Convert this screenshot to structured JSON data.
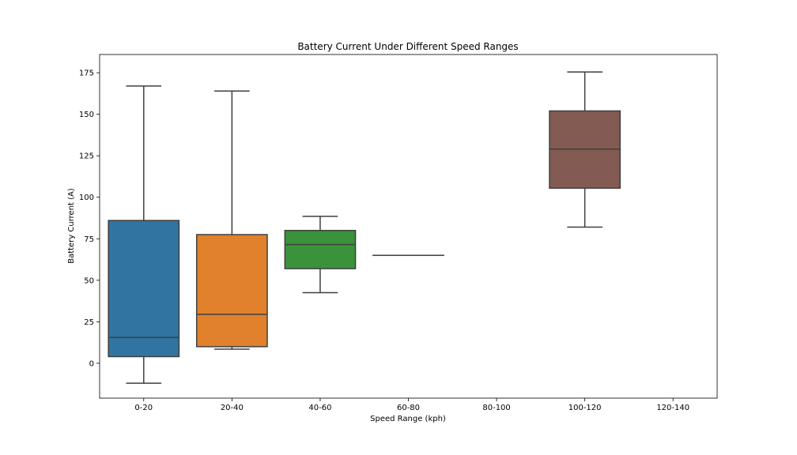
{
  "chart_data": {
    "type": "boxplot",
    "title": "Battery Current Under Different Speed Ranges",
    "xlabel": "Speed Range (kph)",
    "ylabel": "Battery Current (A)",
    "ylim": [
      -21,
      186
    ],
    "yticks": [
      0,
      25,
      50,
      75,
      100,
      125,
      150,
      175
    ],
    "grid": false,
    "categories": [
      "0-20",
      "20-40",
      "40-60",
      "60-80",
      "80-100",
      "100-120",
      "120-140"
    ],
    "boxes": [
      {
        "category": "0-20",
        "whisker_low": -12,
        "q1": 4,
        "median": 15.5,
        "q3": 86,
        "whisker_high": 167,
        "color": "#3274a1"
      },
      {
        "category": "20-40",
        "whisker_low": 8.5,
        "q1": 10,
        "median": 29.5,
        "q3": 77.5,
        "whisker_high": 164,
        "color": "#e1812c"
      },
      {
        "category": "40-60",
        "whisker_low": 42.5,
        "q1": 57,
        "median": 71.5,
        "q3": 80,
        "whisker_high": 88.5,
        "color": "#3a923a"
      },
      {
        "category": "60-80",
        "whisker_low": 65,
        "q1": 65,
        "median": 65,
        "q3": 65,
        "whisker_high": 65,
        "color": "#c03d3e"
      },
      {
        "category": "80-100",
        "empty": true
      },
      {
        "category": "100-120",
        "whisker_low": 82,
        "q1": 105.5,
        "median": 129,
        "q3": 152,
        "whisker_high": 175.5,
        "color": "#845b53"
      },
      {
        "category": "120-140",
        "empty": true
      }
    ]
  }
}
